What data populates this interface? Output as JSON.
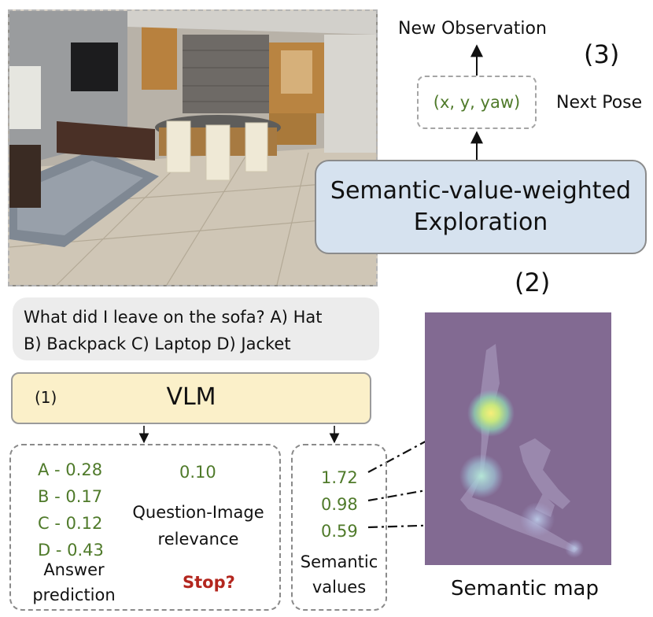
{
  "observation_label": "New Observation",
  "step3_label": "(3)",
  "next_pose_label": "Next Pose",
  "pose_text": "(x, y, yaw)",
  "exploration_text_line1": "Semantic-value-weighted",
  "exploration_text_line2": "Exploration",
  "step2_label": "(2)",
  "question_line1": "What did I leave on the sofa? A) Hat",
  "question_line2": "B) Backpack C) Laptop D) Jacket",
  "vlm_label": "VLM",
  "step1_label": "(1)",
  "answers": [
    "A - 0.28",
    "B - 0.17",
    "C - 0.12",
    "D - 0.43"
  ],
  "answer_caption_line1": "Answer",
  "answer_caption_line2": "prediction",
  "relevance_value": "0.10",
  "relevance_caption_line1": "Question-Image",
  "relevance_caption_line2": "relevance",
  "stop_label": "Stop?",
  "semantic_values": [
    "1.72",
    "0.98",
    "0.59"
  ],
  "semantic_caption_line1": "Semantic",
  "semantic_caption_line2": "values",
  "semantic_map_label": "Semantic map",
  "colors": {
    "value_green": "#4f7a2a",
    "stop_red": "#b3261e",
    "vlm_fill": "#fbf0c9",
    "exploration_fill": "#d6e2ef",
    "map_background": "#826a92"
  }
}
